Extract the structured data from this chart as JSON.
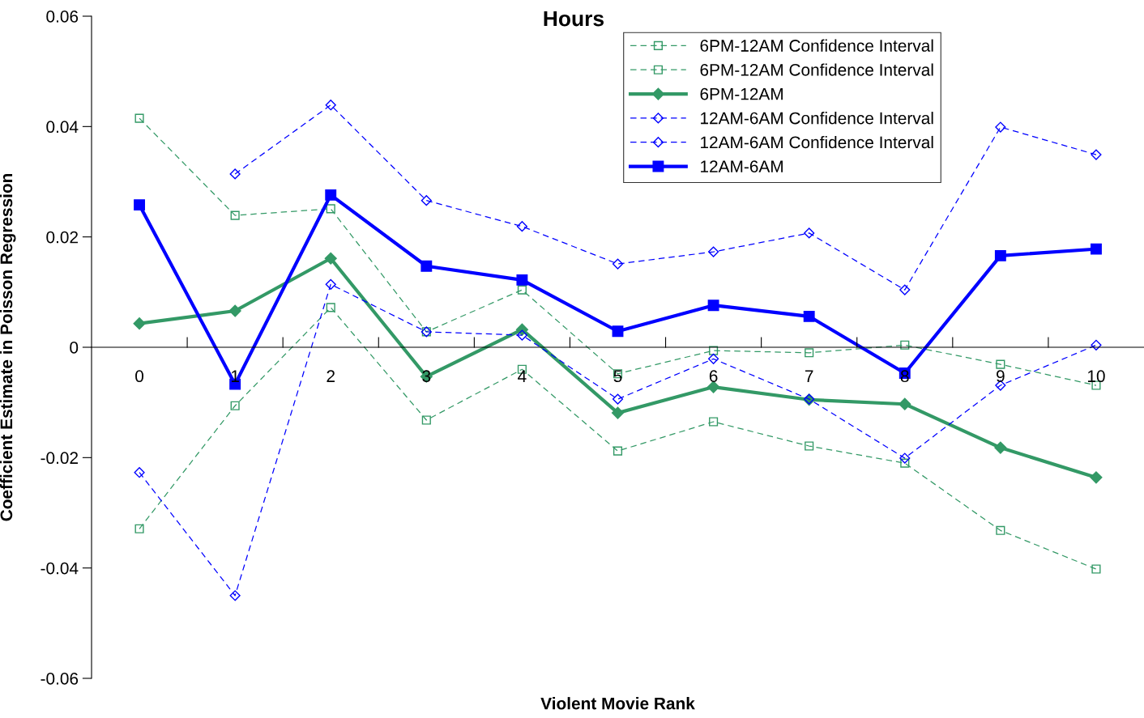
{
  "chart_data": {
    "type": "line",
    "title": "Hours",
    "xlabel": "Violent Movie Rank",
    "ylabel": "Coefficient Estimate in Poisson Regression",
    "categories": [
      "0",
      "1",
      "2",
      "3",
      "4",
      "5",
      "6",
      "7",
      "8",
      "9",
      "10"
    ],
    "series": [
      {
        "name": "6PM-12AM Confidence Interval",
        "color": "#339966",
        "marker": "square",
        "line_style": "dashed",
        "values": [
          0.0415,
          0.0239,
          0.0251,
          0.0028,
          0.0104,
          -0.0048,
          -0.0006,
          -0.001,
          0.0004,
          -0.0031,
          -0.0069
        ]
      },
      {
        "name": "6PM-12AM Confidence Interval",
        "color": "#339966",
        "marker": "square",
        "line_style": "dashed",
        "values": [
          -0.0329,
          -0.0106,
          0.0072,
          -0.0132,
          -0.004,
          -0.0188,
          -0.0135,
          -0.0179,
          -0.021,
          -0.0332,
          -0.0402
        ]
      },
      {
        "name": "6PM-12AM",
        "color": "#339966",
        "marker": "diamond",
        "line_style": "solid",
        "values": [
          0.0043,
          0.0066,
          0.0161,
          -0.0053,
          0.0032,
          -0.0119,
          -0.0072,
          -0.0095,
          -0.0103,
          -0.0182,
          -0.0236
        ]
      },
      {
        "name": "12AM-6AM Confidence Interval",
        "color": "#0000ff",
        "marker": "diamond",
        "line_style": "dashed",
        "values": [
          null,
          0.0314,
          0.0439,
          0.0266,
          0.0219,
          0.0151,
          0.0173,
          0.0207,
          0.0104,
          0.0399,
          0.0349
        ]
      },
      {
        "name": "12AM-6AM Confidence Interval",
        "color": "#0000ff",
        "marker": "diamond",
        "line_style": "dashed",
        "values": [
          -0.0227,
          -0.045,
          0.0114,
          0.0028,
          0.0022,
          -0.0094,
          -0.0021,
          -0.0094,
          -0.0201,
          -0.0069,
          0.0004
        ]
      },
      {
        "name": "12AM-6AM",
        "color": "#0000ff",
        "marker": "square",
        "line_style": "solid",
        "values": [
          0.0258,
          -0.0067,
          0.0276,
          0.0147,
          0.0122,
          0.0029,
          0.0076,
          0.0056,
          -0.0047,
          0.0166,
          0.0178
        ]
      }
    ],
    "ylim": [
      -0.06,
      0.06
    ],
    "yticks": [
      -0.06,
      -0.04,
      -0.02,
      0,
      0.02,
      0.04,
      0.06
    ],
    "grid": false,
    "legend": "top right"
  }
}
